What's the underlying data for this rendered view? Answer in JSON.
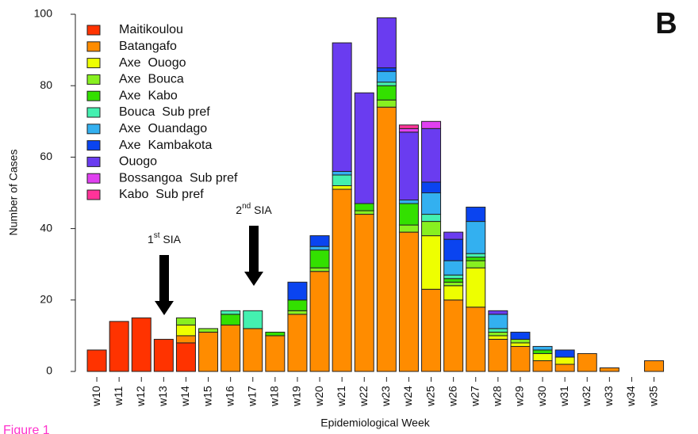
{
  "chart_data": {
    "type": "stacked_bar",
    "panel_label": "B",
    "caption": "Figure 1",
    "xlabel": "Epidemiological Week",
    "ylabel": "Number of Cases",
    "categories": [
      "w10",
      "w11",
      "w12",
      "w13",
      "w14",
      "w15",
      "w16",
      "w17",
      "w18",
      "w19",
      "w20",
      "w21",
      "w22",
      "w23",
      "w24",
      "w25",
      "w26",
      "w27",
      "w28",
      "w29",
      "w30",
      "w31",
      "w32",
      "w33",
      "w34",
      "w35"
    ],
    "ylim": [
      0,
      100
    ],
    "yticks": [
      0,
      20,
      40,
      60,
      80,
      100
    ],
    "legend": "top-left",
    "annotations": [
      {
        "base": "1",
        "sup": "st",
        "rest": " SIA"
      },
      {
        "base": "2",
        "sup": "nd",
        "rest": " SIA"
      }
    ],
    "series": [
      {
        "name": "Maitikoulou",
        "color": "#ff3300",
        "values": [
          6,
          14,
          15,
          9,
          8,
          0,
          0,
          0,
          0,
          0,
          0,
          0,
          0,
          0,
          0,
          0,
          0,
          0,
          0,
          0,
          0,
          0,
          0,
          0,
          0,
          0
        ]
      },
      {
        "name": "Batangafo",
        "color": "#ff8c00",
        "values": [
          0,
          0,
          0,
          0,
          2,
          11,
          13,
          12,
          10,
          16,
          28,
          51,
          44,
          74,
          39,
          23,
          20,
          18,
          9,
          7,
          3,
          2,
          5,
          1,
          0,
          3
        ]
      },
      {
        "name": "Axe  Ouogo",
        "color": "#eeff00",
        "values": [
          0,
          0,
          0,
          0,
          3,
          0,
          0,
          0,
          0,
          0,
          0,
          1,
          0,
          0,
          0,
          15,
          4,
          11,
          1,
          1,
          2,
          2,
          0,
          0,
          0,
          0
        ]
      },
      {
        "name": "Axe  Bouca",
        "color": "#88f020",
        "values": [
          0,
          0,
          0,
          0,
          2,
          1,
          0,
          0,
          0,
          1,
          1,
          0,
          1,
          2,
          2,
          4,
          1,
          2,
          1,
          1,
          0,
          0,
          0,
          0,
          0,
          0
        ]
      },
      {
        "name": "Axe  Kabo",
        "color": "#33e000",
        "values": [
          0,
          0,
          0,
          0,
          0,
          0,
          3,
          0,
          1,
          3,
          5,
          0,
          2,
          4,
          6,
          0,
          1,
          1,
          0,
          0,
          1,
          0,
          0,
          0,
          0,
          0
        ]
      },
      {
        "name": "Bouca  Sub pref",
        "color": "#44f0b0",
        "values": [
          0,
          0,
          0,
          0,
          0,
          0,
          1,
          5,
          0,
          0,
          0,
          3,
          0,
          1,
          0,
          2,
          1,
          1,
          1,
          0,
          0,
          0,
          0,
          0,
          0,
          0
        ]
      },
      {
        "name": "Axe  Ouandago",
        "color": "#33b0f0",
        "values": [
          0,
          0,
          0,
          0,
          0,
          0,
          0,
          0,
          0,
          0,
          1,
          1,
          0,
          3,
          1,
          6,
          4,
          9,
          4,
          0,
          1,
          0,
          0,
          0,
          0,
          0
        ]
      },
      {
        "name": "Axe  Kambakota",
        "color": "#0a44f0",
        "values": [
          0,
          0,
          0,
          0,
          0,
          0,
          0,
          0,
          0,
          5,
          3,
          0,
          0,
          1,
          0,
          3,
          6,
          4,
          0,
          2,
          0,
          2,
          0,
          0,
          0,
          0
        ]
      },
      {
        "name": "Ouogo",
        "color": "#6a3cf0",
        "values": [
          0,
          0,
          0,
          0,
          0,
          0,
          0,
          0,
          0,
          0,
          0,
          36,
          31,
          14,
          19,
          15,
          2,
          0,
          1,
          0,
          0,
          0,
          0,
          0,
          0,
          0
        ]
      },
      {
        "name": "Bossangoa  Sub pref",
        "color": "#e040f0",
        "values": [
          0,
          0,
          0,
          0,
          0,
          0,
          0,
          0,
          0,
          0,
          0,
          0,
          0,
          0,
          1,
          2,
          0,
          0,
          0,
          0,
          0,
          0,
          0,
          0,
          0,
          0
        ]
      },
      {
        "name": "Kabo  Sub pref",
        "color": "#ff3399",
        "values": [
          0,
          0,
          0,
          0,
          0,
          0,
          0,
          0,
          0,
          0,
          0,
          0,
          0,
          0,
          1,
          0,
          0,
          0,
          0,
          0,
          0,
          0,
          0,
          0,
          0,
          0
        ]
      }
    ]
  }
}
